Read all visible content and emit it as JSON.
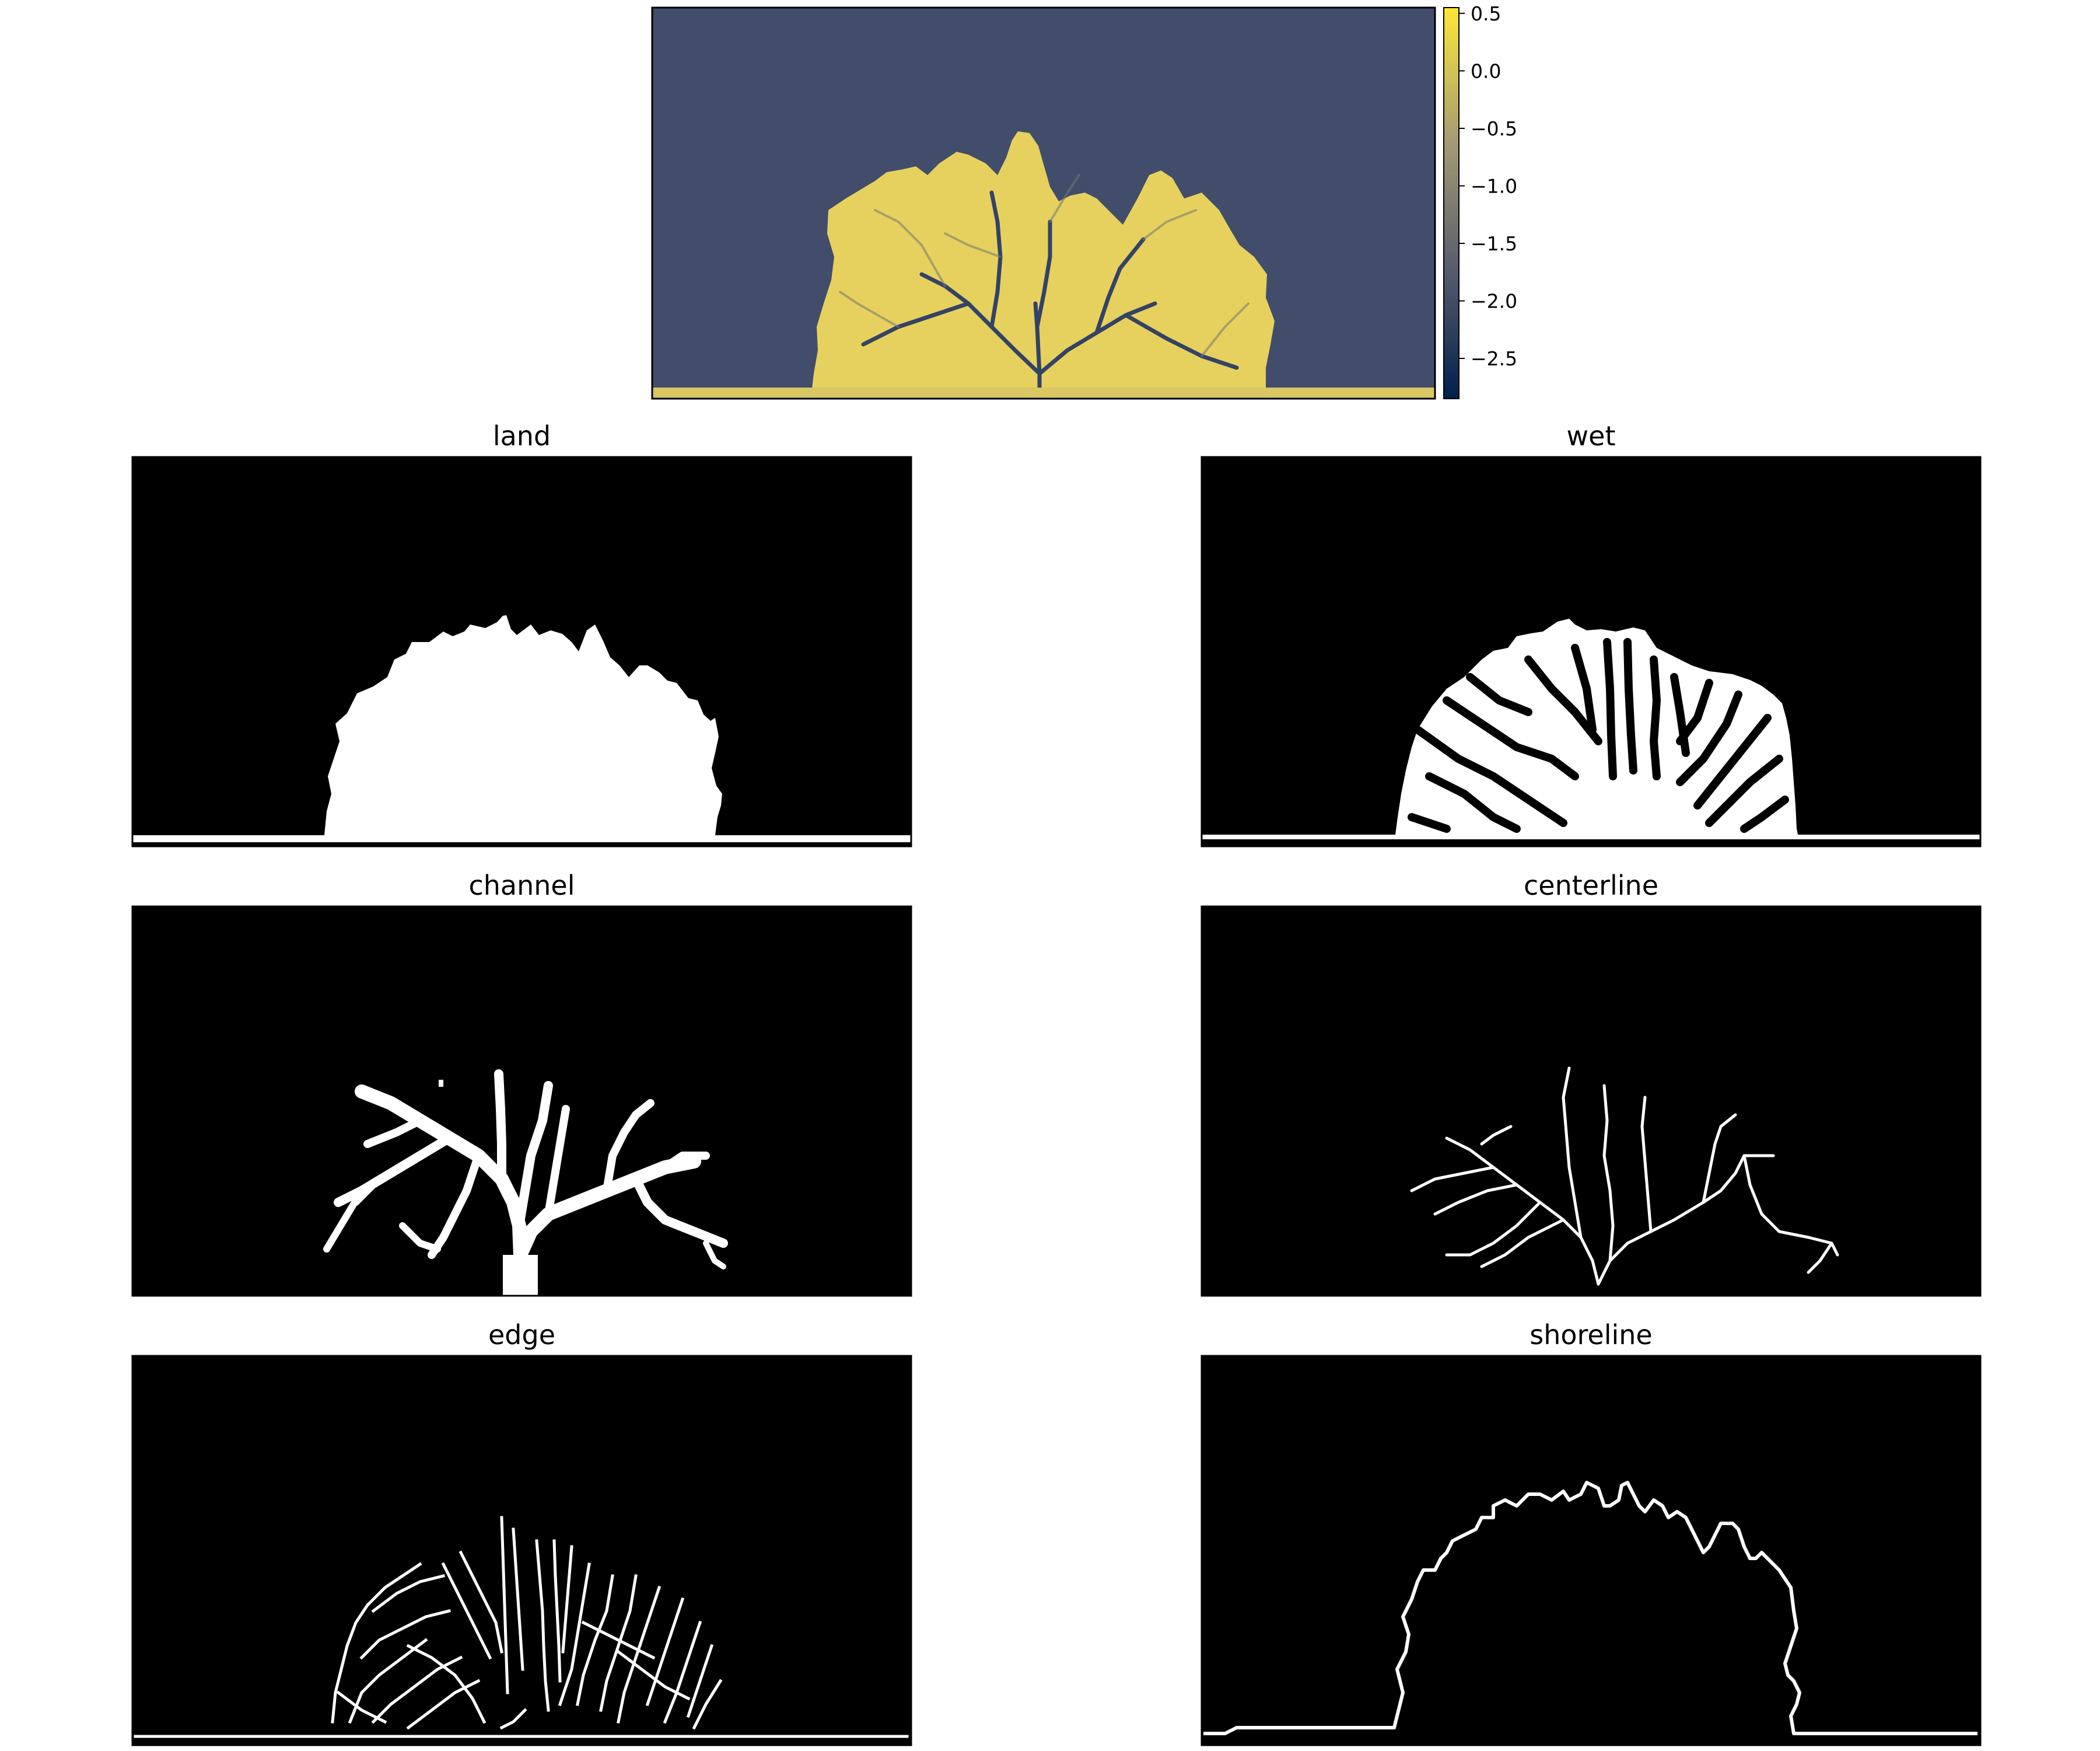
{
  "top_panel": {
    "colormap": "cividis",
    "colorbar": {
      "ticks": [
        "0.5",
        "0.0",
        "−0.5",
        "−1.0",
        "−1.5",
        "−2.0",
        "−2.5"
      ],
      "tick_values": [
        0.5,
        0.0,
        -0.5,
        -1.0,
        -1.5,
        -2.0,
        -2.5
      ],
      "min": -2.85,
      "max": 0.55,
      "colors": [
        "#00204c",
        "#575c6d",
        "#a59c74",
        "#fde737"
      ]
    },
    "water_color": "#414d6b",
    "land_color": "#e7d15e"
  },
  "panels": [
    {
      "key": "land",
      "title": "land"
    },
    {
      "key": "wet",
      "title": "wet"
    },
    {
      "key": "channel",
      "title": "channel"
    },
    {
      "key": "centerline",
      "title": "centerline"
    },
    {
      "key": "edge",
      "title": "edge"
    },
    {
      "key": "shoreline",
      "title": "shoreline"
    }
  ],
  "colors": {
    "mask_background": "#000000",
    "mask_foreground": "#ffffff"
  }
}
